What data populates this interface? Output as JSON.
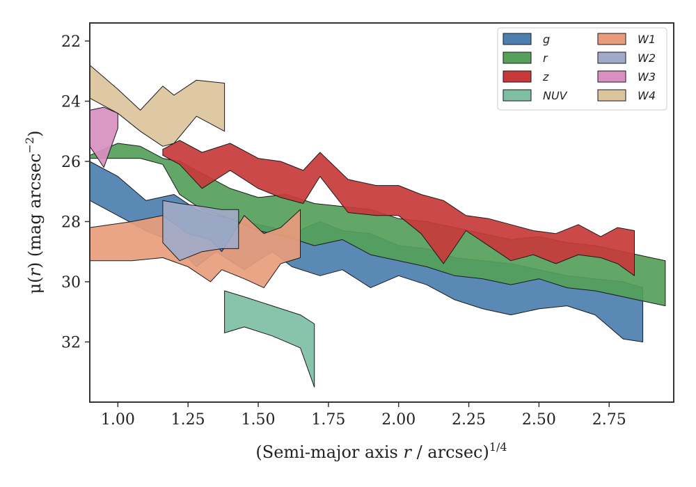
{
  "chart_data": {
    "type": "area",
    "xlabel": {
      "prefix": "(Semi-major axis ",
      "var": "r",
      "suffix": " / arcsec)",
      "sup": "1/4"
    },
    "ylabel": {
      "mu": "μ(",
      "var": "r",
      "mid": ") (mag arcsec",
      "sup": "−2",
      "end": ")"
    },
    "xlim": [
      0.9,
      2.98
    ],
    "ylim": [
      34.0,
      21.4
    ],
    "y_inverted": true,
    "xticks": [
      1.0,
      1.25,
      1.5,
      1.75,
      2.0,
      2.25,
      2.5,
      2.75
    ],
    "xtick_labels": [
      "1.00",
      "1.25",
      "1.50",
      "1.75",
      "2.00",
      "2.25",
      "2.50",
      "2.75"
    ],
    "yticks": [
      22,
      24,
      26,
      28,
      30,
      32
    ],
    "ytick_labels": [
      "22",
      "24",
      "26",
      "28",
      "30",
      "32"
    ],
    "legend_position": "top-right",
    "grid": false,
    "series": [
      {
        "name": "g",
        "color": "#4c7fb0",
        "x": [
          0.9,
          1.0,
          1.1,
          1.2,
          1.28,
          1.35,
          1.45,
          1.55,
          1.62,
          1.72,
          1.8,
          1.9,
          2.0,
          2.1,
          2.2,
          2.3,
          2.4,
          2.5,
          2.6,
          2.7,
          2.8,
          2.87
        ],
        "y_upper": [
          26.0,
          26.5,
          27.3,
          27.1,
          27.6,
          27.8,
          28.0,
          28.2,
          28.4,
          28.0,
          28.3,
          28.4,
          28.8,
          28.9,
          29.2,
          29.3,
          29.4,
          29.6,
          29.8,
          29.9,
          30.0,
          30.2
        ],
        "y_lower": [
          27.3,
          27.8,
          28.3,
          28.7,
          29.5,
          29.0,
          29.6,
          29.0,
          29.5,
          29.8,
          29.6,
          30.2,
          29.8,
          30.1,
          30.6,
          30.9,
          31.1,
          30.9,
          30.8,
          31.1,
          31.9,
          32.0
        ]
      },
      {
        "name": "r",
        "color": "#55a05a",
        "x": [
          0.9,
          1.0,
          1.08,
          1.16,
          1.22,
          1.3,
          1.4,
          1.5,
          1.6,
          1.7,
          1.8,
          1.9,
          2.0,
          2.1,
          2.2,
          2.3,
          2.4,
          2.5,
          2.6,
          2.7,
          2.8,
          2.95
        ],
        "y_upper": [
          25.8,
          25.4,
          25.5,
          25.9,
          26.0,
          26.4,
          26.9,
          27.2,
          27.1,
          27.4,
          27.5,
          27.6,
          27.9,
          28.0,
          28.2,
          28.4,
          28.6,
          28.5,
          28.7,
          28.8,
          29.0,
          29.3
        ],
        "y_lower": [
          25.9,
          25.9,
          25.9,
          26.1,
          27.1,
          27.6,
          27.9,
          28.3,
          28.5,
          28.8,
          28.6,
          29.1,
          29.3,
          29.5,
          29.8,
          29.9,
          30.1,
          29.9,
          30.2,
          30.3,
          30.5,
          30.8
        ]
      },
      {
        "name": "z",
        "color": "#c8393b",
        "x": [
          1.16,
          1.22,
          1.3,
          1.4,
          1.5,
          1.58,
          1.66,
          1.72,
          1.82,
          1.92,
          2.0,
          2.08,
          2.16,
          2.24,
          2.32,
          2.4,
          2.48,
          2.56,
          2.64,
          2.72,
          2.78,
          2.84
        ],
        "y_upper": [
          25.6,
          25.3,
          25.7,
          25.4,
          25.9,
          26.0,
          26.3,
          25.7,
          26.6,
          26.8,
          26.8,
          27.1,
          27.3,
          27.8,
          27.9,
          28.1,
          28.3,
          28.4,
          28.1,
          28.5,
          28.2,
          28.3
        ],
        "y_lower": [
          25.8,
          26.1,
          26.9,
          26.3,
          26.9,
          27.2,
          27.4,
          26.5,
          27.7,
          27.8,
          27.8,
          28.4,
          29.4,
          28.3,
          28.8,
          29.3,
          29.1,
          29.4,
          29.1,
          29.2,
          29.4,
          29.8
        ]
      },
      {
        "name": "NUV",
        "color": "#7ebfa4",
        "x": [
          1.38,
          1.45,
          1.55,
          1.65,
          1.7
        ],
        "y_upper": [
          30.3,
          30.5,
          30.8,
          31.1,
          31.4
        ],
        "y_lower": [
          31.7,
          31.5,
          31.8,
          32.2,
          33.5
        ]
      },
      {
        "name": "W1",
        "color": "#e89c7c",
        "x": [
          0.9,
          1.05,
          1.16,
          1.25,
          1.33,
          1.37,
          1.45,
          1.52,
          1.58,
          1.65
        ],
        "y_upper": [
          28.2,
          28.0,
          27.8,
          28.4,
          28.6,
          29.0,
          27.8,
          28.4,
          28.2,
          27.6
        ],
        "y_lower": [
          29.3,
          29.3,
          29.2,
          29.5,
          30.0,
          29.6,
          29.9,
          30.2,
          29.4,
          29.2
        ]
      },
      {
        "name": "W2",
        "color": "#9faac8",
        "x": [
          1.16,
          1.22,
          1.3,
          1.37,
          1.43
        ],
        "y_upper": [
          27.3,
          27.4,
          27.5,
          27.6,
          27.6
        ],
        "y_lower": [
          28.7,
          29.3,
          29.0,
          28.9,
          28.9
        ]
      },
      {
        "name": "W3",
        "color": "#d98fbf",
        "x": [
          0.9,
          0.95,
          1.0
        ],
        "y_upper": [
          24.3,
          24.2,
          24.4
        ],
        "y_lower": [
          25.5,
          26.2,
          24.9
        ]
      },
      {
        "name": "W4",
        "color": "#dcc49c",
        "x": [
          0.9,
          1.0,
          1.08,
          1.16,
          1.2,
          1.28,
          1.38
        ],
        "y_upper": [
          22.8,
          23.6,
          24.3,
          23.5,
          23.8,
          23.3,
          23.4
        ],
        "y_lower": [
          23.9,
          24.4,
          25.0,
          25.5,
          25.4,
          24.5,
          25.0
        ]
      }
    ]
  }
}
